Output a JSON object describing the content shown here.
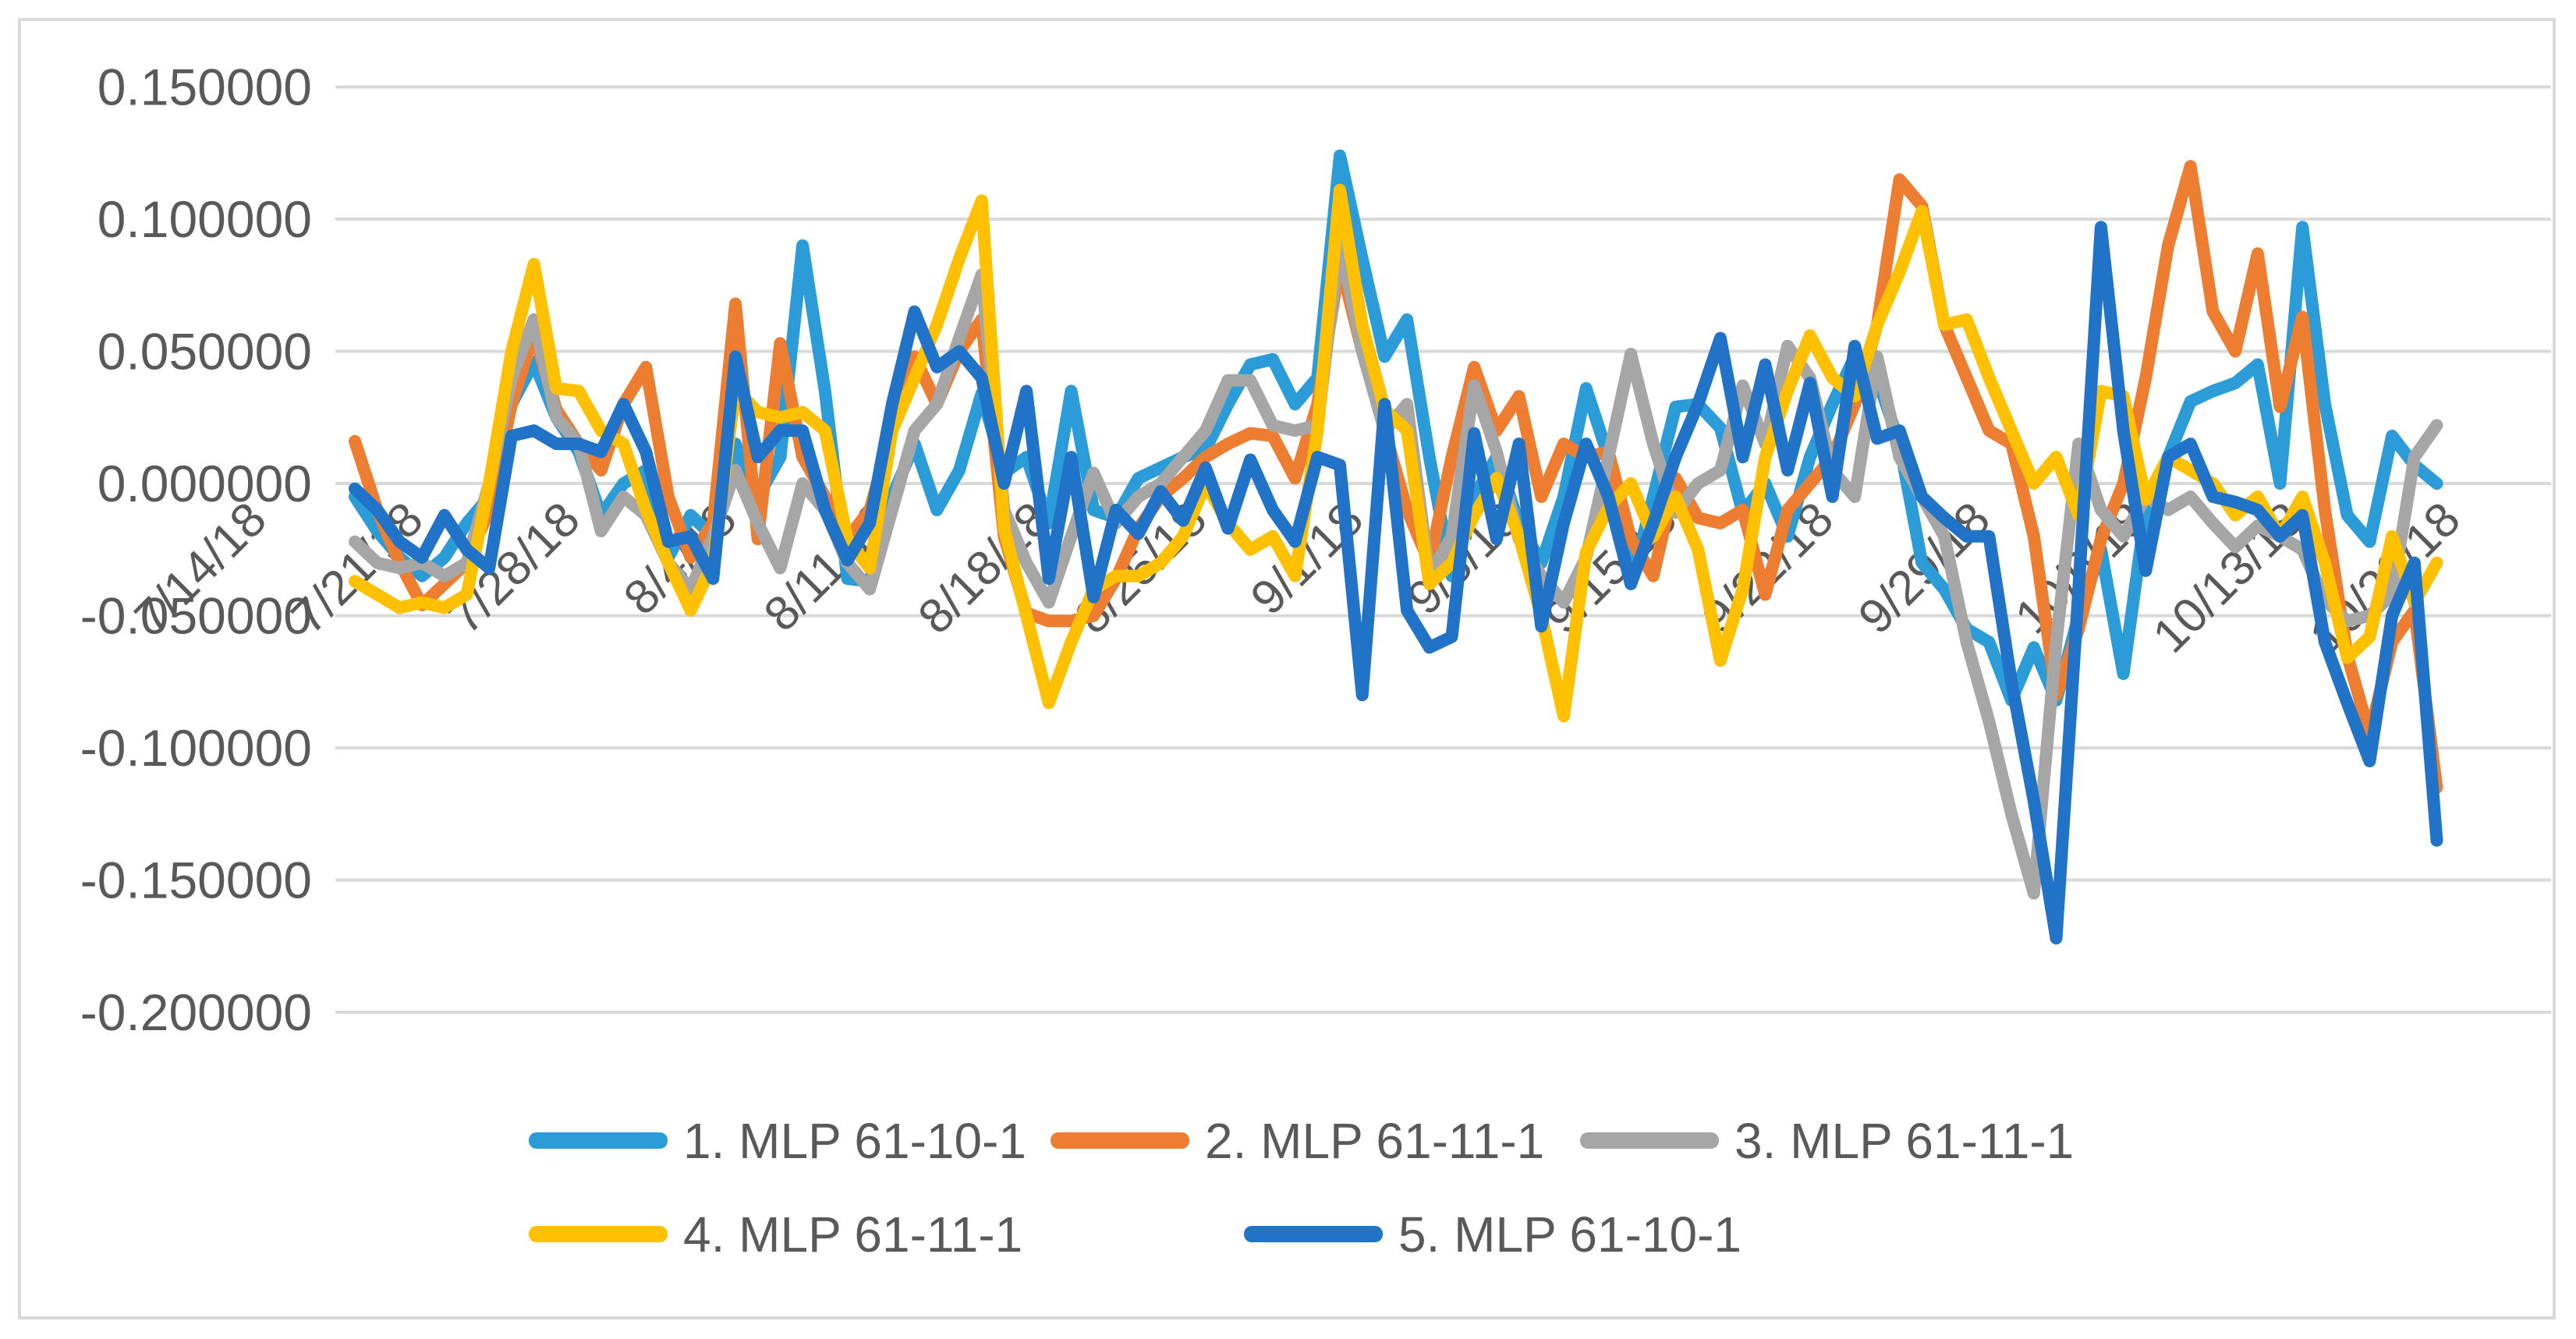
{
  "chart_data": {
    "type": "line",
    "title": "",
    "xlabel": "",
    "ylabel": "",
    "grid": "horizontal",
    "legend_position": "bottom",
    "ylim": [
      -0.2,
      0.15
    ],
    "yticks": [
      0.15,
      0.1,
      0.05,
      0.0,
      -0.05,
      -0.1,
      -0.15,
      -0.2
    ],
    "ytick_labels": [
      "0.150000",
      "0.100000",
      "0.050000",
      "0.000000",
      "-0.050000",
      "-0.100000",
      "-0.150000",
      "-0.200000"
    ],
    "x_tick_labels": [
      "7/14/18",
      "7/21/18",
      "7/28/18",
      "8/4/18",
      "8/11/18",
      "8/18/18",
      "8/25/18",
      "9/1/18",
      "9/8/18",
      "9/15/18",
      "9/22/18",
      "9/29/18",
      "10/6/18",
      "10/13/18",
      "10/20/18"
    ],
    "x_tick_every": 7,
    "categories": [
      "7/14/18",
      "7/15/18",
      "7/16/18",
      "7/17/18",
      "7/18/18",
      "7/19/18",
      "7/20/18",
      "7/21/18",
      "7/22/18",
      "7/23/18",
      "7/24/18",
      "7/25/18",
      "7/26/18",
      "7/27/18",
      "7/28/18",
      "7/29/18",
      "7/30/18",
      "7/31/18",
      "8/1/18",
      "8/2/18",
      "8/3/18",
      "8/4/18",
      "8/5/18",
      "8/6/18",
      "8/7/18",
      "8/8/18",
      "8/9/18",
      "8/10/18",
      "8/11/18",
      "8/12/18",
      "8/13/18",
      "8/14/18",
      "8/15/18",
      "8/16/18",
      "8/17/18",
      "8/18/18",
      "8/19/18",
      "8/20/18",
      "8/21/18",
      "8/22/18",
      "8/23/18",
      "8/24/18",
      "8/25/18",
      "8/26/18",
      "8/27/18",
      "8/28/18",
      "8/29/18",
      "8/30/18",
      "8/31/18",
      "9/1/18",
      "9/2/18",
      "9/3/18",
      "9/4/18",
      "9/5/18",
      "9/6/18",
      "9/7/18",
      "9/8/18",
      "9/9/18",
      "9/10/18",
      "9/11/18",
      "9/12/18",
      "9/13/18",
      "9/14/18",
      "9/15/18",
      "9/16/18",
      "9/17/18",
      "9/18/18",
      "9/19/18",
      "9/20/18",
      "9/21/18",
      "9/22/18",
      "9/23/18",
      "9/24/18",
      "9/25/18",
      "9/26/18",
      "9/27/18",
      "9/28/18",
      "9/29/18",
      "9/30/18",
      "10/1/18",
      "10/2/18",
      "10/3/18",
      "10/4/18",
      "10/5/18",
      "10/6/18",
      "10/7/18",
      "10/8/18",
      "10/9/18",
      "10/10/18",
      "10/11/18",
      "10/12/18",
      "10/13/18",
      "10/14/18",
      "10/15/18",
      "10/16/18",
      "10/17/18",
      "10/18/18",
      "10/19/18",
      "10/20/18"
    ],
    "series": [
      {
        "name": "1. MLP 61-10-1",
        "color": "#2B9CD8",
        "values": [
          -0.005,
          -0.018,
          -0.028,
          -0.035,
          -0.028,
          -0.015,
          -0.005,
          0.03,
          0.046,
          0.025,
          0.012,
          -0.012,
          0.0,
          0.005,
          -0.028,
          -0.012,
          -0.02,
          0.015,
          -0.005,
          0.01,
          0.09,
          0.035,
          -0.036,
          -0.037,
          -0.005,
          0.015,
          -0.01,
          0.005,
          0.034,
          0.004,
          0.01,
          -0.015,
          0.035,
          -0.01,
          -0.013,
          0.002,
          0.006,
          0.01,
          0.013,
          0.03,
          0.045,
          0.047,
          0.03,
          0.04,
          0.124,
          0.085,
          0.048,
          0.062,
          0.01,
          -0.035,
          -0.005,
          0.01,
          -0.015,
          -0.03,
          -0.005,
          0.036,
          0.01,
          -0.038,
          -0.005,
          0.029,
          0.03,
          0.021,
          -0.011,
          0.0,
          -0.02,
          0.01,
          0.03,
          0.048,
          0.04,
          0.015,
          -0.03,
          -0.04,
          -0.055,
          -0.06,
          -0.082,
          -0.062,
          -0.082,
          -0.05,
          -0.025,
          -0.072,
          -0.01,
          0.01,
          0.031,
          0.035,
          0.038,
          0.045,
          0.0,
          0.097,
          0.03,
          -0.012,
          -0.022,
          0.018,
          0.007,
          0.0,
          null,
          null,
          null,
          null,
          null
        ]
      },
      {
        "name": "2. MLP 61-11-1",
        "color": "#ED7D31",
        "values": [
          0.016,
          -0.01,
          -0.03,
          -0.046,
          -0.038,
          -0.03,
          -0.01,
          0.03,
          0.057,
          0.028,
          0.015,
          0.005,
          0.03,
          0.044,
          -0.005,
          -0.028,
          -0.015,
          0.068,
          -0.021,
          0.053,
          0.01,
          -0.005,
          -0.021,
          -0.01,
          0.02,
          0.048,
          0.03,
          0.05,
          0.062,
          -0.02,
          -0.049,
          -0.052,
          -0.052,
          -0.05,
          -0.036,
          -0.017,
          -0.005,
          0.002,
          0.01,
          0.015,
          0.019,
          0.018,
          0.002,
          0.03,
          0.084,
          0.05,
          0.02,
          -0.01,
          -0.03,
          0.01,
          0.044,
          0.02,
          0.033,
          -0.005,
          0.015,
          0.01,
          0.012,
          -0.021,
          -0.035,
          0.002,
          -0.013,
          -0.015,
          -0.01,
          -0.042,
          -0.01,
          0.0,
          0.01,
          0.03,
          0.06,
          0.115,
          0.105,
          0.06,
          0.04,
          0.02,
          0.015,
          -0.02,
          -0.08,
          -0.055,
          -0.021,
          0.0,
          0.04,
          0.09,
          0.12,
          0.065,
          0.05,
          0.087,
          0.029,
          0.063,
          -0.01,
          -0.065,
          -0.095,
          -0.06,
          -0.048,
          -0.115,
          null,
          null,
          null,
          null,
          null
        ]
      },
      {
        "name": "3. MLP 61-11-1",
        "color": "#A6A6A6",
        "values": [
          -0.022,
          -0.03,
          -0.032,
          -0.03,
          -0.035,
          -0.03,
          0.0,
          0.04,
          0.062,
          0.025,
          0.015,
          -0.018,
          -0.005,
          -0.012,
          -0.03,
          -0.04,
          -0.02,
          0.005,
          -0.015,
          -0.032,
          0.0,
          -0.01,
          -0.03,
          -0.04,
          -0.01,
          0.02,
          0.03,
          0.055,
          0.079,
          -0.01,
          -0.03,
          -0.045,
          -0.02,
          0.004,
          -0.015,
          -0.005,
          0.0,
          0.01,
          0.02,
          0.039,
          0.039,
          0.022,
          0.02,
          0.022,
          0.092,
          0.05,
          0.02,
          0.03,
          -0.035,
          -0.02,
          0.037,
          0.012,
          -0.021,
          -0.035,
          -0.045,
          -0.028,
          0.01,
          0.049,
          0.015,
          -0.011,
          0.0,
          0.005,
          0.037,
          0.015,
          0.052,
          0.04,
          0.005,
          -0.005,
          0.048,
          0.01,
          -0.005,
          -0.02,
          -0.06,
          -0.09,
          -0.125,
          -0.155,
          -0.06,
          0.015,
          -0.01,
          -0.02,
          -0.005,
          -0.01,
          -0.005,
          -0.015,
          -0.024,
          -0.016,
          -0.02,
          -0.025,
          -0.044,
          -0.052,
          -0.05,
          -0.042,
          0.01,
          0.022,
          null,
          null,
          null,
          null,
          null
        ]
      },
      {
        "name": "4. MLP 61-11-1",
        "color": "#FFC000",
        "values": [
          -0.037,
          -0.042,
          -0.047,
          -0.045,
          -0.047,
          -0.042,
          0.0,
          0.05,
          0.083,
          0.036,
          0.035,
          0.02,
          0.015,
          -0.01,
          -0.03,
          -0.048,
          -0.03,
          0.036,
          0.027,
          0.025,
          0.027,
          0.02,
          -0.021,
          -0.032,
          0.02,
          0.04,
          0.06,
          0.085,
          0.107,
          -0.017,
          -0.05,
          -0.083,
          -0.06,
          -0.04,
          -0.035,
          -0.035,
          -0.03,
          -0.02,
          0.0,
          -0.015,
          -0.025,
          -0.02,
          -0.035,
          0.02,
          0.111,
          0.06,
          0.028,
          0.02,
          -0.038,
          -0.03,
          -0.012,
          0.002,
          -0.02,
          -0.05,
          -0.088,
          -0.026,
          -0.009,
          0.0,
          -0.02,
          -0.005,
          -0.025,
          -0.067,
          -0.04,
          0.01,
          0.035,
          0.056,
          0.04,
          0.033,
          0.06,
          0.08,
          0.103,
          0.06,
          0.062,
          0.04,
          0.02,
          0.0,
          0.01,
          -0.012,
          0.035,
          0.033,
          -0.006,
          0.01,
          0.005,
          0.0,
          -0.012,
          -0.005,
          -0.02,
          -0.005,
          -0.03,
          -0.066,
          -0.058,
          -0.02,
          -0.045,
          -0.03,
          null,
          null,
          null,
          null,
          null
        ]
      },
      {
        "name": "5. MLP 61-10-1",
        "color": "#2073C6",
        "values": [
          -0.002,
          -0.01,
          -0.022,
          -0.028,
          -0.012,
          -0.025,
          -0.032,
          0.018,
          0.02,
          0.015,
          0.015,
          0.012,
          0.03,
          0.012,
          -0.022,
          -0.02,
          -0.036,
          0.048,
          0.01,
          0.02,
          0.02,
          -0.01,
          -0.029,
          -0.015,
          0.03,
          0.065,
          0.044,
          0.05,
          0.04,
          0.0,
          0.035,
          -0.036,
          0.01,
          -0.043,
          -0.01,
          -0.019,
          -0.003,
          -0.014,
          0.006,
          -0.017,
          0.009,
          -0.01,
          -0.022,
          0.01,
          0.007,
          -0.08,
          0.03,
          -0.048,
          -0.062,
          -0.058,
          0.019,
          -0.021,
          0.015,
          -0.054,
          -0.015,
          0.015,
          -0.005,
          -0.038,
          -0.015,
          0.01,
          0.03,
          0.055,
          0.01,
          0.045,
          0.005,
          0.038,
          -0.005,
          0.052,
          0.017,
          0.02,
          -0.005,
          -0.013,
          -0.02,
          -0.02,
          -0.075,
          -0.12,
          -0.172,
          -0.04,
          0.097,
          0.02,
          -0.033,
          0.01,
          0.015,
          -0.005,
          -0.007,
          -0.01,
          -0.02,
          -0.012,
          -0.06,
          -0.083,
          -0.105,
          -0.05,
          -0.03,
          -0.135,
          null,
          null,
          null,
          null,
          null
        ]
      }
    ],
    "colors": {
      "gridline": "#D9D9D9",
      "border": "#D9D9D9",
      "axis_text": "#595959",
      "background": "#FFFFFF"
    }
  },
  "legend": {
    "items": [
      {
        "label": "1. MLP 61-10-1"
      },
      {
        "label": "2. MLP 61-11-1"
      },
      {
        "label": "3. MLP 61-11-1"
      },
      {
        "label": "4. MLP 61-11-1"
      },
      {
        "label": "5. MLP 61-10-1"
      }
    ]
  }
}
